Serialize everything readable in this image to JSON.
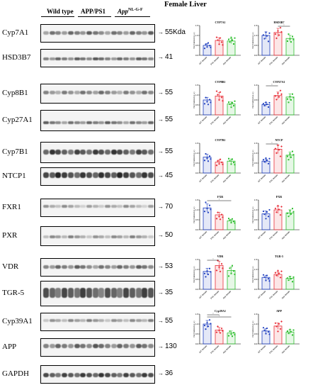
{
  "figure": {
    "title": "Female Liver",
    "groups": [
      {
        "label": "Wild type",
        "width": 50
      },
      {
        "label": "APP/PS1",
        "width": 50
      },
      {
        "label": "App",
        "sup": "NL-G-F",
        "width": 53
      }
    ]
  },
  "blots": [
    {
      "protein": "Cyp7A1",
      "kda": "55Kda",
      "top": 34,
      "height": 26,
      "bandY": 0.45,
      "bandH": 5,
      "dark": 0.55
    },
    {
      "protein": "HSD3B7",
      "kda": "41",
      "top": 69,
      "height": 26,
      "bandY": 0.5,
      "bandH": 4,
      "dark": 0.6
    },
    {
      "protein": "Cyp8B1",
      "kda": "55",
      "top": 118,
      "height": 28,
      "bandY": 0.4,
      "bandH": 5,
      "dark": 0.5
    },
    {
      "protein": "Cyp27A1",
      "kda": "55",
      "top": 155,
      "height": 30,
      "bandY": 0.55,
      "bandH": 4,
      "dark": 0.55
    },
    {
      "protein": "Cyp7B1",
      "kda": "55",
      "top": 200,
      "height": 30,
      "bandY": 0.45,
      "bandH": 7,
      "dark": 0.75
    },
    {
      "protein": "NTCP1",
      "kda": "45",
      "top": 236,
      "height": 26,
      "bandY": 0.4,
      "bandH": 8,
      "dark": 0.8
    },
    {
      "protein": "FXR1",
      "kda": "70",
      "top": 280,
      "height": 26,
      "bandY": 0.4,
      "bandH": 4,
      "dark": 0.35
    },
    {
      "protein": "PXR",
      "kda": "50",
      "top": 319,
      "height": 28,
      "bandY": 0.5,
      "bandH": 4,
      "dark": 0.4
    },
    {
      "protein": "VDR",
      "kda": "53",
      "top": 364,
      "height": 26,
      "bandY": 0.45,
      "bandH": 5,
      "dark": 0.55
    },
    {
      "protein": "TGR-5",
      "kda": "35",
      "top": 396,
      "height": 36,
      "bandY": 0.45,
      "bandH": 14,
      "dark": 0.7
    },
    {
      "protein": "Cyp39A1",
      "kda": "55",
      "top": 441,
      "height": 26,
      "bandY": 0.4,
      "bandH": 4,
      "dark": 0.4
    },
    {
      "protein": "APP",
      "kda": "130",
      "top": 477,
      "height": 26,
      "bandY": 0.4,
      "bandH": 6,
      "dark": 0.6
    },
    {
      "protein": "GAPDH",
      "kda": "36",
      "top": 515,
      "height": 26,
      "bandY": 0.5,
      "bandH": 6,
      "dark": 0.75
    }
  ],
  "legend": {
    "colors": [
      "#1f3fbf",
      "#e8303a",
      "#2fbf2f"
    ],
    "groups": [
      "WT female",
      "PS1 female",
      "App female"
    ],
    "ylabel": "Normalized (a.u.)"
  },
  "chart_data": [
    {
      "type": "bar",
      "title": "CYP7A1",
      "categories": [
        "WT female",
        "PS1 female",
        "App female"
      ],
      "values": [
        0.5,
        0.75,
        0.72
      ],
      "ylim": [
        0,
        1.5
      ],
      "ticks": [
        0,
        0.5,
        1.0,
        1.5
      ],
      "sig": []
    },
    {
      "type": "bar",
      "title": "HSD3B7",
      "categories": [
        "WT female",
        "PS1 female",
        "App female"
      ],
      "values": [
        1.0,
        1.15,
        0.85
      ],
      "ylim": [
        0,
        1.5
      ],
      "ticks": [
        0,
        0.5,
        1.0,
        1.5
      ],
      "sig": [
        [
          1,
          2
        ]
      ]
    },
    {
      "type": "bar",
      "title": "CYP8B1",
      "categories": [
        "WT female",
        "PS1 female",
        "App female"
      ],
      "values": [
        0.75,
        0.95,
        0.55
      ],
      "ylim": [
        0,
        1.5
      ],
      "ticks": [
        0,
        0.5,
        1.0,
        1.5
      ],
      "sig": []
    },
    {
      "type": "bar",
      "title": "CYP27A1",
      "categories": [
        "WT female",
        "PS1 female",
        "App female"
      ],
      "values": [
        0.35,
        0.65,
        0.6
      ],
      "ylim": [
        0,
        1.0
      ],
      "ticks": [
        0,
        0.5,
        1.0
      ],
      "sig": [
        [
          0,
          1
        ]
      ]
    },
    {
      "type": "bar",
      "title": "CYP7B1",
      "categories": [
        "WT female",
        "PS1 female",
        "App female"
      ],
      "values": [
        0.8,
        0.55,
        0.6
      ],
      "ylim": [
        0,
        1.5
      ],
      "ticks": [
        0,
        0.5,
        1.0,
        1.5
      ],
      "sig": []
    },
    {
      "type": "bar",
      "title": "NTCP",
      "categories": [
        "WT female",
        "PS1 female",
        "App female"
      ],
      "values": [
        0.6,
        1.2,
        0.9
      ],
      "ylim": [
        0,
        1.5
      ],
      "ticks": [
        0,
        0.5,
        1.0,
        1.5
      ],
      "sig": [
        [
          0,
          1
        ]
      ]
    },
    {
      "type": "bar",
      "title": "FXR",
      "categories": [
        "WT female",
        "PS1 female",
        "App female"
      ],
      "values": [
        1.1,
        0.75,
        0.45
      ],
      "ylim": [
        0,
        1.5
      ],
      "ticks": [
        0,
        0.5,
        1.0,
        1.5
      ],
      "sig": [
        [
          0,
          2
        ]
      ]
    },
    {
      "type": "bar",
      "title": "PXR",
      "categories": [
        "WT female",
        "PS1 female",
        "App female"
      ],
      "values": [
        0.8,
        1.0,
        0.85
      ],
      "ylim": [
        0,
        1.5
      ],
      "ticks": [
        0,
        0.5,
        1.0,
        1.5
      ],
      "sig": []
    },
    {
      "type": "bar",
      "title": "VDR",
      "categories": [
        "WT female",
        "PS1 female",
        "App female"
      ],
      "values": [
        0.9,
        1.2,
        0.95
      ],
      "ylim": [
        0,
        1.5
      ],
      "ticks": [
        0,
        0.5,
        1.0,
        1.5
      ],
      "sig": [
        [
          0,
          1
        ]
      ]
    },
    {
      "type": "bar",
      "title": "TGR-5",
      "categories": [
        "WT female",
        "PS1 female",
        "App female"
      ],
      "values": [
        0.6,
        0.75,
        0.55
      ],
      "ylim": [
        0,
        1.5
      ],
      "ticks": [
        0,
        0.5,
        1.0,
        1.5
      ],
      "sig": []
    },
    {
      "type": "bar",
      "title": "Cyp39A1",
      "categories": [
        "WT female",
        "PS1 female",
        "App female"
      ],
      "values": [
        1.0,
        0.7,
        0.55
      ],
      "ylim": [
        0,
        1.5
      ],
      "ticks": [
        0,
        0.5,
        1.0,
        1.5
      ],
      "sig": [
        [
          0,
          1
        ],
        [
          0,
          2
        ]
      ]
    },
    {
      "type": "bar",
      "title": "APP",
      "categories": [
        "WT female",
        "PS1 female",
        "App female"
      ],
      "values": [
        0.65,
        0.9,
        0.6
      ],
      "ylim": [
        0,
        1.5
      ],
      "ticks": [
        0,
        0.5,
        1.0,
        1.5
      ],
      "sig": []
    }
  ]
}
